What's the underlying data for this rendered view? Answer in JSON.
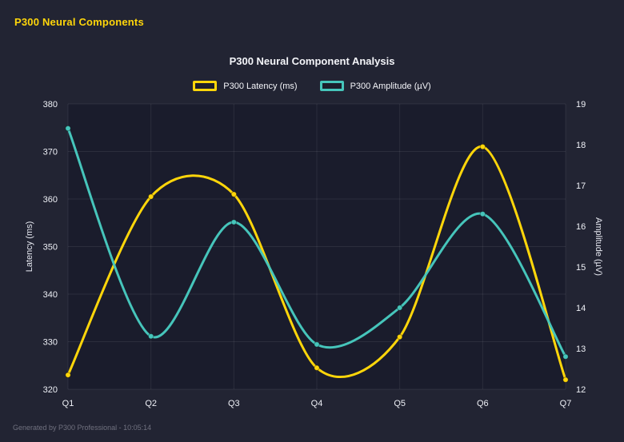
{
  "page": {
    "header": "P300 Neural Components",
    "footer": "Generated by P300 Professional - 10:05:14"
  },
  "chart_data": {
    "type": "line",
    "title": "P300 Neural Component Analysis",
    "categories": [
      "Q1",
      "Q2",
      "Q3",
      "Q4",
      "Q5",
      "Q6",
      "Q7"
    ],
    "series": [
      {
        "name": "P300 Latency (ms)",
        "axis": "left",
        "color": "#ffd60a",
        "values": [
          323,
          360.5,
          361,
          324.5,
          331,
          371,
          322
        ]
      },
      {
        "name": "P300 Amplitude (µV)",
        "axis": "right",
        "color": "#46c5bb",
        "values": [
          18.4,
          13.3,
          16.1,
          13.1,
          14.0,
          16.3,
          12.8
        ]
      }
    ],
    "left_axis": {
      "label": "Latency (ms)",
      "min": 320,
      "max": 380,
      "ticks": [
        320,
        330,
        340,
        350,
        360,
        370,
        380
      ]
    },
    "right_axis": {
      "label": "Amplitude (µV)",
      "min": 12,
      "max": 19,
      "ticks": [
        12,
        13,
        14,
        15,
        16,
        17,
        18,
        19
      ]
    },
    "grid": true,
    "legend_position": "top",
    "plot_background": "#1a1c2c",
    "grid_color": "rgba(255,255,255,0.08)"
  }
}
